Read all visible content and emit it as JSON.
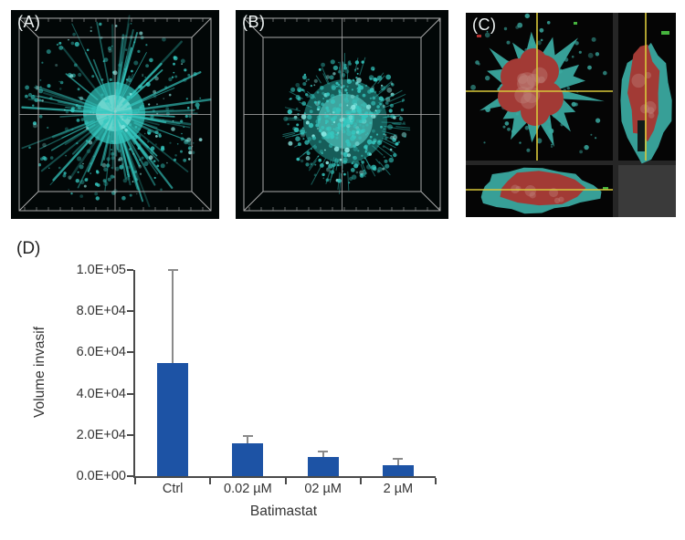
{
  "panels": {
    "a": {
      "label": "(A)"
    },
    "b": {
      "label": "(B)"
    },
    "c": {
      "label": "(C)"
    },
    "d": {
      "label": "(D)"
    }
  },
  "chart_data": {
    "type": "bar",
    "title": "",
    "categories": [
      "Ctrl",
      "0.02 µM",
      "02 µM",
      "2 µM"
    ],
    "values": [
      55000,
      16000,
      9300,
      5400
    ],
    "errors_up": [
      45000,
      3600,
      2600,
      3000
    ],
    "xlabel": "Batimastat",
    "ylabel": "Volume invasif",
    "ylim": [
      0,
      100000
    ],
    "yticks": [
      "0.0E+00",
      "2.0E+04",
      "4.0E+04",
      "6.0E+04",
      "8.0E+04",
      "1.0E+05"
    ],
    "ytick_values": [
      0,
      20000,
      40000,
      60000,
      80000,
      100000
    ],
    "bar_color": "#1d53a5",
    "error_color": "#8a8a8a",
    "axis_color": "#4a4a4a",
    "legend": [],
    "grid": false
  },
  "colors": {
    "spheroid_cyan": "#35c8c0",
    "segmentation_cyan": "#3aa89f",
    "core_red": "#a23a35",
    "crosshair_yellow": "#d8c83a",
    "wireframe_gray": "#bdbdbd",
    "panel_background": "#020707"
  }
}
